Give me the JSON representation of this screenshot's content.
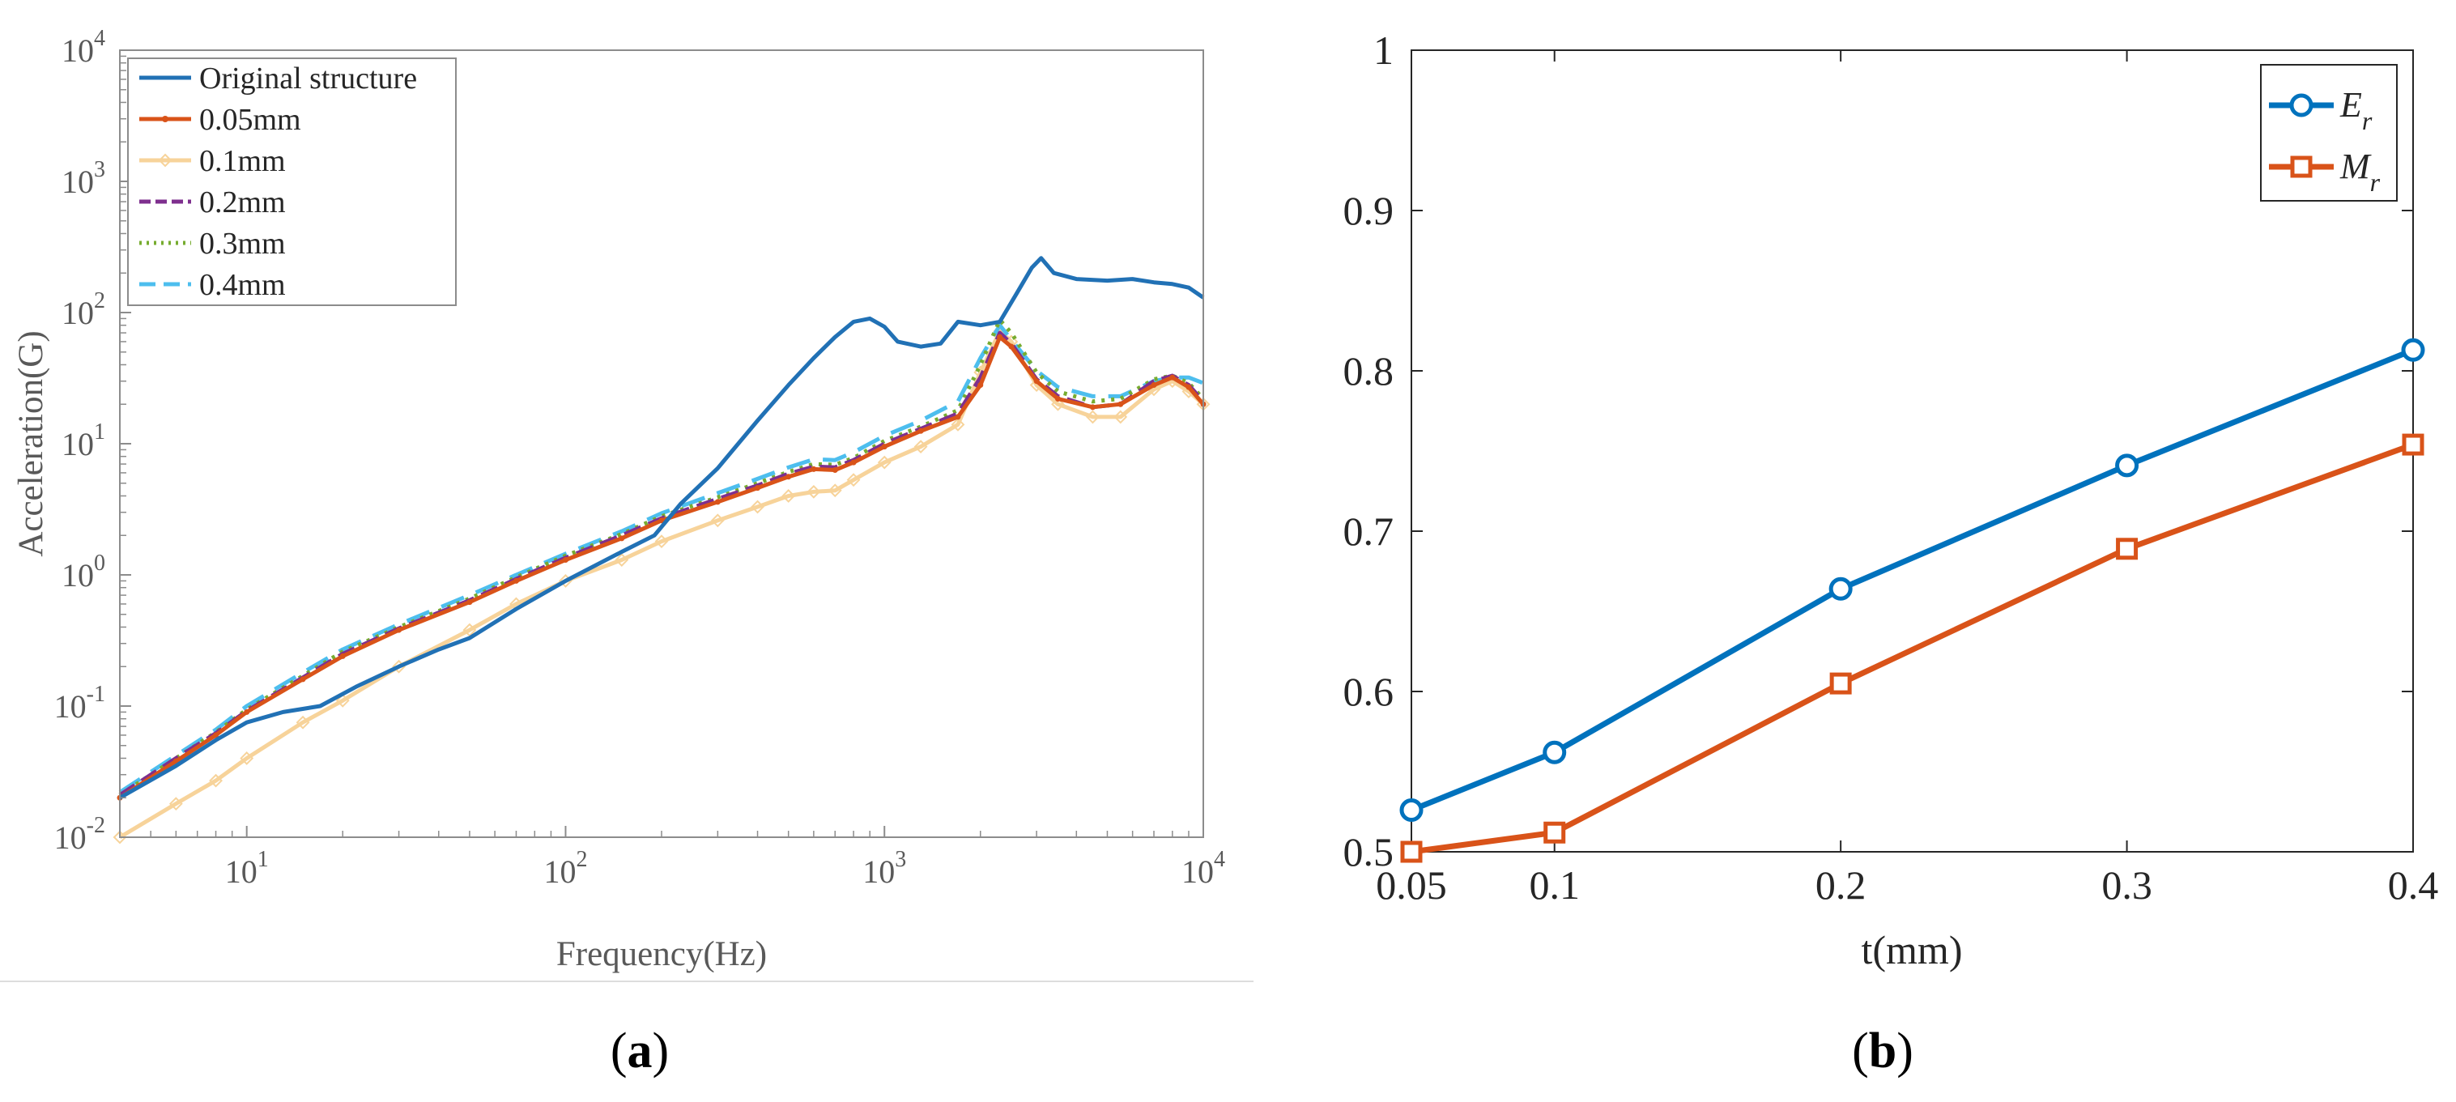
{
  "panels": {
    "a": {
      "label_open": "(",
      "letter": "a",
      "label_close": ")"
    },
    "b": {
      "label_open": "(",
      "letter": "b",
      "label_close": ")"
    }
  },
  "chart_data": [
    {
      "id": "a",
      "type": "line",
      "x_scale": "log",
      "y_scale": "log",
      "xlabel": "Frequency(Hz)",
      "ylabel": "Acceleration(G)",
      "xlim": [
        4,
        10000
      ],
      "ylim": [
        0.01,
        10000
      ],
      "x_ticks": [
        {
          "value": 10,
          "base": "10",
          "exp": "1"
        },
        {
          "value": 100,
          "base": "10",
          "exp": "2"
        },
        {
          "value": 1000,
          "base": "10",
          "exp": "3"
        },
        {
          "value": 10000,
          "base": "10",
          "exp": "4"
        }
      ],
      "y_ticks": [
        {
          "value": 0.01,
          "base": "10",
          "exp": "-2"
        },
        {
          "value": 0.1,
          "base": "10",
          "exp": "-1"
        },
        {
          "value": 1,
          "base": "10",
          "exp": "0"
        },
        {
          "value": 10,
          "base": "10",
          "exp": "1"
        },
        {
          "value": 100,
          "base": "10",
          "exp": "2"
        },
        {
          "value": 1000,
          "base": "10",
          "exp": "3"
        },
        {
          "value": 10000,
          "base": "10",
          "exp": "4"
        }
      ],
      "legend_position": "top-left",
      "series": [
        {
          "name": "Original structure",
          "color": "#2171b5",
          "dash": "",
          "marker": "none",
          "data": [
            [
              4,
              0.02
            ],
            [
              6,
              0.035
            ],
            [
              8,
              0.055
            ],
            [
              10,
              0.075
            ],
            [
              13,
              0.09
            ],
            [
              17,
              0.1
            ],
            [
              22,
              0.14
            ],
            [
              30,
              0.2
            ],
            [
              40,
              0.27
            ],
            [
              50,
              0.33
            ],
            [
              70,
              0.55
            ],
            [
              100,
              0.9
            ],
            [
              150,
              1.5
            ],
            [
              190,
              2
            ],
            [
              230,
              3.5
            ],
            [
              300,
              6.5
            ],
            [
              400,
              15
            ],
            [
              500,
              28
            ],
            [
              600,
              45
            ],
            [
              700,
              65
            ],
            [
              800,
              85
            ],
            [
              900,
              90
            ],
            [
              1000,
              78
            ],
            [
              1100,
              60
            ],
            [
              1300,
              55
            ],
            [
              1500,
              58
            ],
            [
              1700,
              85
            ],
            [
              2000,
              80
            ],
            [
              2300,
              85
            ],
            [
              2600,
              140
            ],
            [
              2900,
              220
            ],
            [
              3100,
              260
            ],
            [
              3400,
              200
            ],
            [
              4000,
              180
            ],
            [
              5000,
              175
            ],
            [
              6000,
              180
            ],
            [
              7000,
              170
            ],
            [
              8000,
              165
            ],
            [
              9000,
              155
            ],
            [
              10000,
              130
            ]
          ]
        },
        {
          "name": "0.05mm",
          "color": "#d95319",
          "dash": "",
          "marker": "dot",
          "data": [
            [
              4,
              0.02
            ],
            [
              6,
              0.038
            ],
            [
              8,
              0.06
            ],
            [
              10,
              0.09
            ],
            [
              15,
              0.16
            ],
            [
              20,
              0.24
            ],
            [
              30,
              0.38
            ],
            [
              50,
              0.62
            ],
            [
              70,
              0.9
            ],
            [
              100,
              1.3
            ],
            [
              150,
              1.9
            ],
            [
              200,
              2.6
            ],
            [
              300,
              3.6
            ],
            [
              400,
              4.6
            ],
            [
              500,
              5.6
            ],
            [
              600,
              6.4
            ],
            [
              700,
              6.3
            ],
            [
              800,
              7.2
            ],
            [
              1000,
              9.5
            ],
            [
              1300,
              12.5
            ],
            [
              1700,
              16
            ],
            [
              2000,
              28
            ],
            [
              2300,
              65
            ],
            [
              2500,
              55
            ],
            [
              3000,
              30
            ],
            [
              3500,
              22
            ],
            [
              4500,
              19
            ],
            [
              5500,
              20
            ],
            [
              7000,
              28
            ],
            [
              8000,
              32
            ],
            [
              9000,
              27
            ],
            [
              10000,
              20
            ]
          ]
        },
        {
          "name": "0.1mm",
          "color": "#f7d39a",
          "dash": "",
          "marker": "diamond",
          "data": [
            [
              4,
              0.01
            ],
            [
              6,
              0.018
            ],
            [
              8,
              0.027
            ],
            [
              10,
              0.04
            ],
            [
              15,
              0.075
            ],
            [
              20,
              0.11
            ],
            [
              30,
              0.2
            ],
            [
              50,
              0.38
            ],
            [
              70,
              0.6
            ],
            [
              100,
              0.9
            ],
            [
              150,
              1.3
            ],
            [
              200,
              1.8
            ],
            [
              300,
              2.6
            ],
            [
              400,
              3.3
            ],
            [
              500,
              4
            ],
            [
              600,
              4.3
            ],
            [
              700,
              4.4
            ],
            [
              800,
              5.3
            ],
            [
              1000,
              7.2
            ],
            [
              1300,
              9.5
            ],
            [
              1700,
              14
            ],
            [
              2000,
              35
            ],
            [
              2300,
              72
            ],
            [
              2500,
              60
            ],
            [
              3000,
              28
            ],
            [
              3500,
              20
            ],
            [
              4500,
              16
            ],
            [
              5500,
              16
            ],
            [
              7000,
              26
            ],
            [
              8000,
              30
            ],
            [
              9000,
              25
            ],
            [
              10000,
              20
            ]
          ]
        },
        {
          "name": "0.2mm",
          "color": "#7e2f8e",
          "dash": "22,10",
          "marker": "none",
          "data": [
            [
              4,
              0.021
            ],
            [
              6,
              0.04
            ],
            [
              8,
              0.062
            ],
            [
              10,
              0.092
            ],
            [
              15,
              0.165
            ],
            [
              20,
              0.25
            ],
            [
              30,
              0.39
            ],
            [
              50,
              0.64
            ],
            [
              70,
              0.93
            ],
            [
              100,
              1.35
            ],
            [
              150,
              2
            ],
            [
              200,
              2.7
            ],
            [
              300,
              3.8
            ],
            [
              400,
              4.8
            ],
            [
              500,
              5.9
            ],
            [
              600,
              6.7
            ],
            [
              700,
              6.6
            ],
            [
              800,
              7.5
            ],
            [
              1000,
              10
            ],
            [
              1300,
              13
            ],
            [
              1700,
              17
            ],
            [
              2000,
              32
            ],
            [
              2300,
              70
            ],
            [
              2500,
              58
            ],
            [
              3000,
              31
            ],
            [
              3500,
              23
            ],
            [
              4500,
              19
            ],
            [
              5500,
              20
            ],
            [
              7000,
              30
            ],
            [
              8000,
              33
            ],
            [
              9000,
              28
            ],
            [
              10000,
              21
            ]
          ]
        },
        {
          "name": "0.3mm",
          "color": "#77ac30",
          "dash": "4,8",
          "marker": "none",
          "data": [
            [
              4,
              0.021
            ],
            [
              6,
              0.04
            ],
            [
              8,
              0.063
            ],
            [
              10,
              0.094
            ],
            [
              15,
              0.17
            ],
            [
              20,
              0.26
            ],
            [
              30,
              0.4
            ],
            [
              50,
              0.66
            ],
            [
              70,
              0.96
            ],
            [
              100,
              1.4
            ],
            [
              150,
              2.05
            ],
            [
              200,
              2.8
            ],
            [
              300,
              3.9
            ],
            [
              400,
              5
            ],
            [
              500,
              6.1
            ],
            [
              600,
              7
            ],
            [
              700,
              6.9
            ],
            [
              800,
              7.8
            ],
            [
              1000,
              10.5
            ],
            [
              1300,
              13.5
            ],
            [
              1700,
              18
            ],
            [
              2000,
              40
            ],
            [
              2300,
              88
            ],
            [
              2500,
              70
            ],
            [
              3000,
              35
            ],
            [
              3500,
              25
            ],
            [
              4500,
              21
            ],
            [
              5500,
              22
            ],
            [
              7000,
              31
            ],
            [
              8000,
              33
            ],
            [
              9000,
              29
            ],
            [
              10000,
              22
            ]
          ]
        },
        {
          "name": "0.4mm",
          "color": "#4dbeee",
          "dash": "30,16",
          "marker": "none",
          "data": [
            [
              4,
              0.022
            ],
            [
              6,
              0.042
            ],
            [
              8,
              0.066
            ],
            [
              10,
              0.1
            ],
            [
              15,
              0.18
            ],
            [
              20,
              0.27
            ],
            [
              30,
              0.42
            ],
            [
              50,
              0.7
            ],
            [
              70,
              1
            ],
            [
              100,
              1.45
            ],
            [
              150,
              2.15
            ],
            [
              200,
              2.95
            ],
            [
              300,
              4.2
            ],
            [
              400,
              5.4
            ],
            [
              500,
              6.6
            ],
            [
              600,
              7.6
            ],
            [
              700,
              7.5
            ],
            [
              800,
              8.6
            ],
            [
              1000,
              11.5
            ],
            [
              1300,
              15
            ],
            [
              1700,
              21
            ],
            [
              2000,
              45
            ],
            [
              2300,
              80
            ],
            [
              2500,
              62
            ],
            [
              3000,
              36
            ],
            [
              3500,
              27
            ],
            [
              4500,
              23
            ],
            [
              5500,
              23
            ],
            [
              7000,
              30
            ],
            [
              8000,
              32
            ],
            [
              9000,
              32
            ],
            [
              10000,
              29
            ]
          ]
        }
      ]
    },
    {
      "id": "b",
      "type": "line",
      "xlabel": "t(mm)",
      "ylabel": "",
      "xlim": [
        0.05,
        0.4
      ],
      "ylim": [
        0.5,
        1.0
      ],
      "x_ticks": [
        "0.05",
        "0.1",
        "0.2",
        "0.3",
        "0.4"
      ],
      "y_ticks": [
        "0.5",
        "0.6",
        "0.7",
        "0.8",
        "0.9",
        "1"
      ],
      "legend_position": "top-right",
      "series": [
        {
          "name_main": "E",
          "name_sub": "r",
          "color": "#0072bd",
          "marker": "circle",
          "x": [
            0.05,
            0.1,
            0.2,
            0.3,
            0.4
          ],
          "y": [
            0.526,
            0.562,
            0.664,
            0.741,
            0.813
          ]
        },
        {
          "name_main": "M",
          "name_sub": "r",
          "color": "#d95319",
          "marker": "square",
          "x": [
            0.05,
            0.1,
            0.2,
            0.3,
            0.4
          ],
          "y": [
            0.5,
            0.512,
            0.605,
            0.689,
            0.754
          ]
        }
      ]
    }
  ]
}
